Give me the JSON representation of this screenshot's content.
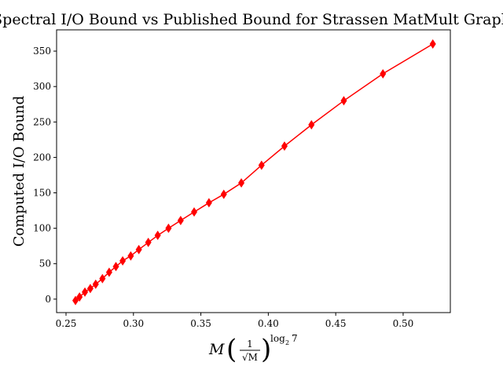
{
  "chart_data": {
    "type": "line",
    "title": "Spectral I/O Bound vs Published Bound for Strassen MatMult Graph",
    "ylabel": "Computed I/O Bound",
    "xlabel": {
      "var": "M",
      "frac_num": "1",
      "frac_den": "√M",
      "exp_base": "log",
      "exp_sub": "2",
      "exp_arg": "7"
    },
    "xlim": [
      0.243,
      0.535
    ],
    "ylim": [
      -19,
      380
    ],
    "x_ticks": [
      0.25,
      0.3,
      0.35,
      0.4,
      0.45,
      0.5
    ],
    "x_tick_labels": [
      "0.25",
      "0.30",
      "0.35",
      "0.40",
      "0.45",
      "0.50"
    ],
    "y_ticks": [
      0,
      50,
      100,
      150,
      200,
      250,
      300,
      350
    ],
    "y_tick_labels": [
      "0",
      "50",
      "100",
      "150",
      "200",
      "250",
      "300",
      "350"
    ],
    "grid": false,
    "series": [
      {
        "color": "#ff0000",
        "marker": "diamond",
        "x": [
          0.257,
          0.26,
          0.264,
          0.268,
          0.272,
          0.277,
          0.282,
          0.287,
          0.292,
          0.298,
          0.304,
          0.311,
          0.318,
          0.326,
          0.335,
          0.345,
          0.356,
          0.367,
          0.38,
          0.395,
          0.412,
          0.432,
          0.456,
          0.485,
          0.522
        ],
        "y": [
          -2,
          3,
          10,
          15,
          21,
          29,
          38,
          46,
          54,
          61,
          70,
          80,
          90,
          100,
          111,
          123,
          136,
          148,
          164,
          189,
          216,
          246,
          280,
          318,
          360
        ]
      }
    ]
  }
}
